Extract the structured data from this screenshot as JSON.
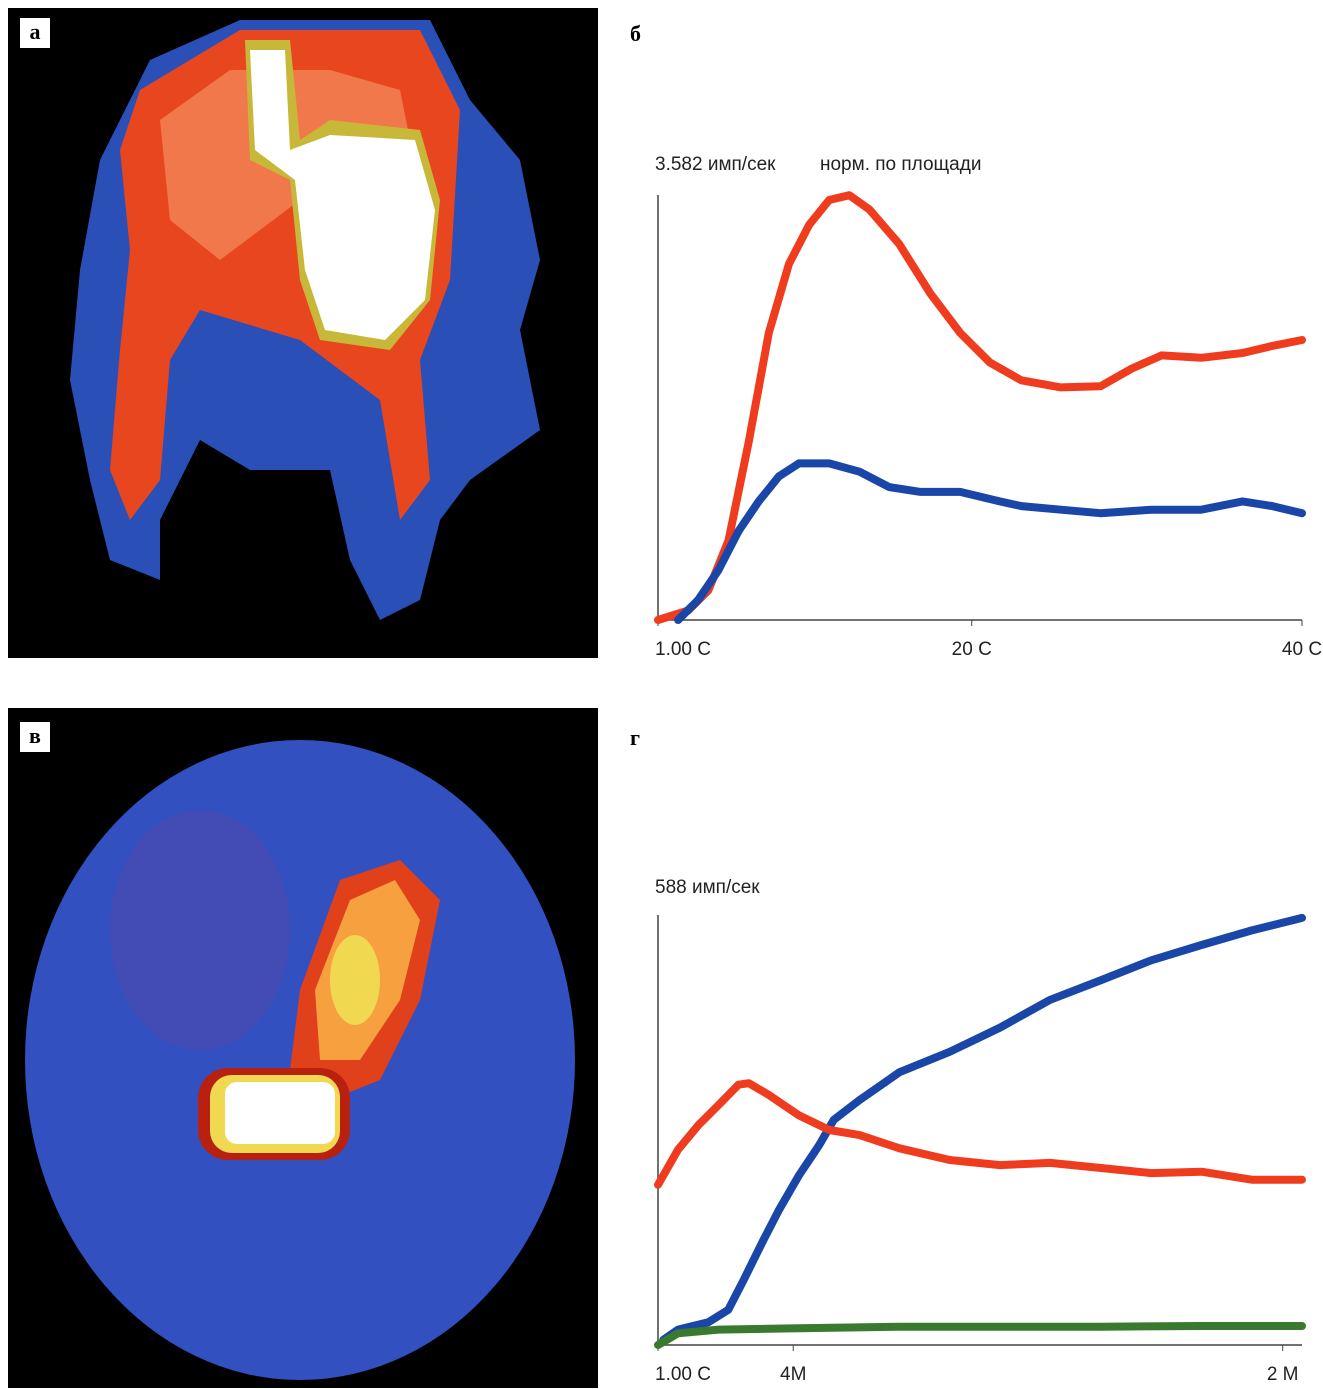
{
  "panels": [
    "а",
    "б",
    "в",
    "г"
  ],
  "chart_data": [
    {
      "type": "line",
      "y_label": "3.582 имп/сек",
      "subtitle": "норм. по площади",
      "xlim": [
        1,
        40
      ],
      "ylim": [
        0,
        3.582
      ],
      "xticks": [
        {
          "value": 1,
          "label": "1.00 C"
        },
        {
          "value": 20,
          "label": "20 C"
        },
        {
          "value": 40,
          "label": "40 C"
        }
      ],
      "series": [
        {
          "color": "#f03c1e",
          "x": [
            1,
            2.83,
            4.05,
            5.27,
            6.49,
            7.71,
            8.93,
            10.15,
            11.37,
            12.59,
            13.8,
            15.6,
            17.5,
            19.3,
            21.1,
            23.0,
            25.4,
            27.8,
            29.7,
            31.5,
            33.9,
            36.4,
            38.2,
            40.0
          ],
          "values": [
            0,
            0.08,
            0.25,
            0.67,
            1.5,
            2.42,
            3.0,
            3.33,
            3.54,
            3.58,
            3.46,
            3.17,
            2.75,
            2.42,
            2.17,
            2.02,
            1.96,
            1.97,
            2.12,
            2.23,
            2.21,
            2.25,
            2.31,
            2.36
          ]
        },
        {
          "color": "#1a46a8",
          "x": [
            2.22,
            3.44,
            4.66,
            5.88,
            7.1,
            8.32,
            9.54,
            11.37,
            13.2,
            15.0,
            16.9,
            19.3,
            21.7,
            23.0,
            25.4,
            27.8,
            30.9,
            33.9,
            36.4,
            38.2,
            40.0
          ],
          "values": [
            0,
            0.17,
            0.42,
            0.75,
            1.0,
            1.21,
            1.32,
            1.32,
            1.25,
            1.12,
            1.08,
            1.08,
            1.0,
            0.96,
            0.93,
            0.9,
            0.93,
            0.93,
            1.0,
            0.96,
            0.9
          ]
        }
      ]
    },
    {
      "type": "line",
      "y_label": "588 имп/сек",
      "xlim": [
        0,
        100
      ],
      "ylim": [
        0,
        588
      ],
      "xticks": [
        {
          "value": 0,
          "label": "1.00 C"
        },
        {
          "value": 21,
          "label": "4M"
        },
        {
          "value": 97,
          "label": "2 M"
        }
      ],
      "series": [
        {
          "color": "#1a46a8",
          "x": [
            0.8,
            3.1,
            7.8,
            10.9,
            13.3,
            16.4,
            18.8,
            21.9,
            25.0,
            27.3,
            31.3,
            37.5,
            45.3,
            53.1,
            60.9,
            68.8,
            76.6,
            84.4,
            92.2,
            100
          ],
          "values": [
            7,
            21,
            31,
            48,
            89,
            144,
            185,
            232,
            273,
            308,
            335,
            373,
            401,
            434,
            472,
            499,
            526,
            547,
            567,
            584
          ]
        },
        {
          "color": "#f03c1e",
          "x": [
            0,
            3.1,
            6.3,
            9.4,
            12.5,
            14.1,
            17.2,
            21.9,
            26.6,
            31.3,
            37.5,
            45.3,
            53.1,
            60.9,
            68.8,
            76.6,
            84.4,
            92.2,
            100
          ],
          "values": [
            219,
            267,
            301,
            328,
            356,
            358,
            342,
            314,
            294,
            287,
            269,
            253,
            246,
            249,
            242,
            235,
            237,
            226,
            226
          ]
        },
        {
          "color": "#3a7a2e",
          "x": [
            0,
            3.1,
            9.4,
            21.9,
            37.5,
            53.1,
            68.8,
            84.4,
            100
          ],
          "values": [
            0,
            16,
            21,
            23,
            25,
            25,
            25,
            26,
            26
          ]
        }
      ]
    }
  ]
}
